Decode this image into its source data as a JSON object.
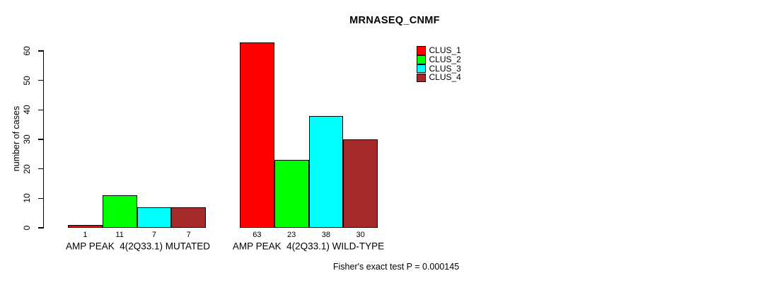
{
  "chart_data": {
    "type": "bar",
    "title": "MRNASEQ_CNMF",
    "xlabel": "",
    "ylabel": "number of cases",
    "ylim": [
      0,
      65
    ],
    "yticks": [
      0,
      10,
      20,
      30,
      40,
      50,
      60
    ],
    "grid": false,
    "legend_position": "top-right",
    "bar_borders": true,
    "show_bar_values": true,
    "categories": [
      "AMP PEAK  4(2Q33.1) MUTATED",
      "AMP PEAK  4(2Q33.1) WILD-TYPE"
    ],
    "series": [
      {
        "name": "CLUS_1",
        "color": "#ff0000",
        "values": [
          1,
          63
        ]
      },
      {
        "name": "CLUS_2",
        "color": "#00ff00",
        "values": [
          11,
          23
        ]
      },
      {
        "name": "CLUS_3",
        "color": "#00ffff",
        "values": [
          7,
          38
        ]
      },
      {
        "name": "CLUS_4",
        "color": "#a52a2a",
        "values": [
          7,
          30
        ]
      }
    ],
    "annotation": "Fisher's exact test P = 0.000145"
  },
  "colors": {
    "background": "#ffffff",
    "axis": "#000000",
    "text": "#000000"
  }
}
